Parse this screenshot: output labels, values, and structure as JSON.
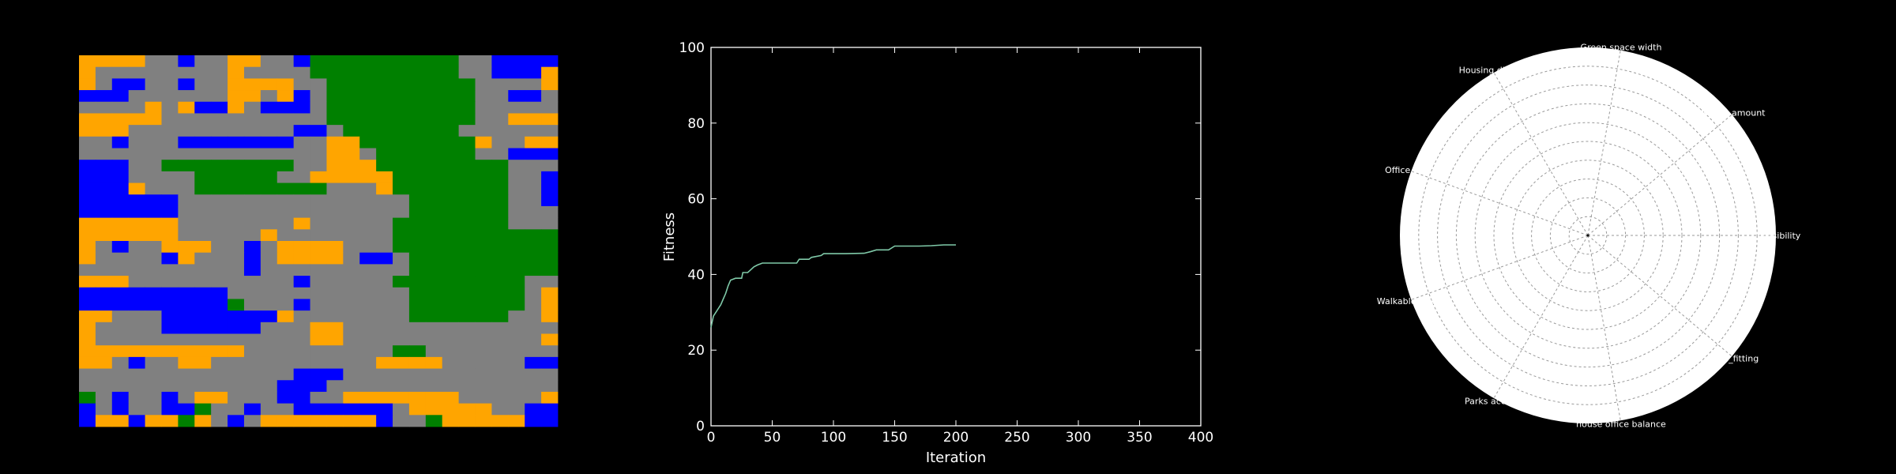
{
  "colors": {
    "background": "#000000",
    "housing": "#ffa500",
    "office": "#0000ff",
    "park": "#008000",
    "road": "#808080",
    "fitness_line": "#7fc9a8",
    "radar_face": "#ffffff",
    "radar_grid": "#999999"
  },
  "city_grid": {
    "legend": {
      "H": "housing",
      "O": "office",
      "P": "park",
      "R": "road"
    },
    "rows": [
      "HHHHRRORRHHRROPPPPPPPPPRROOOO",
      "HRRRRRRRRHRRRRPPPPPPPPPRROOOH",
      "HROORRORRHHHHRRPPPPPPPPPRRRRH",
      "OOORRRRRRHHRHORPPPPPPPPPRROOR",
      "RRRRHRHOOHROOORPPPPPPPPPRRRRR",
      "HHHHHRRRRRRRRRRPPPPPPPPPRRHHH",
      "HHHRRRRRRRRRROORPPPPPPPRRRRRR",
      "RRORRROOOOOOORRHHPPPPPPPHRRHH",
      "RRRRRRRRRRRRRRRHHRPPPPPPRROOO",
      "OOORRPPPPPPPPRRHHHPPPPPPPPRRR",
      "OOORRRRPPPPPRRHHHHHPPPPPPPRRO",
      "OOOHRRRPPPPPPPPRRRHPPPPPPPRRO",
      "OOOOOORRRRRRRRRRRRRRPPPPPPRRO",
      "OOOOOORRRRRRRRRRRRRRPPPPPPRRR",
      "HHHHHHRRRRRRRHRRRRRPPPPPPPRRR",
      "HHHHHHRRRRRHRRRRRRRPPPPPPPPPP",
      "HRORRHHHRRORHHHHRRRPPPPPPPPPP",
      "HRRRROHRRRORHHHHROORPPPPPPPPP",
      "RRRRRRRRRRORRRRRRRRRPPPPPPPPP",
      "HHHRRRRRRRRRRORRRRRPPPPPPPPRR",
      "OOOOOOOOORRRRRRRRRRRPPPPPPPRH",
      "OOOOOOOOOPRRRORRRRRRPPPPPPPRH",
      "HHRRROOOOOOOHRRRRRRRPPPPPPRRH",
      "HRRRROOOOOORRRHHRRRRRRRRRRRRR",
      "HRRRRRRRRRRRRRHHRRRRRRRRRRRRH",
      "HHHHHHHHHHRRRRRRRRRPPRRRRRRRR",
      "HHRORRHHRRRRRRRRRRHHHHRRRRROO",
      "RRRRRRRRRRRRROOORRRRRRRRRRRRR",
      "RRRRRRRRRRRROOORRRRRRRRRRRRRR",
      "PRORRORHHRRROORRHHHHHHHRRRRRH",
      "ORORROOPRRORROOOOOORHHHHHRROO",
      "OHHOHHPHRORHHHHHHHORRPHHHHHOO"
    ]
  },
  "chart_data": [
    {
      "type": "line",
      "title": "",
      "xlabel": "Iteration",
      "ylabel": "Fitness",
      "xlim": [
        0,
        400
      ],
      "ylim": [
        0,
        100
      ],
      "xticks": [
        0,
        50,
        100,
        150,
        200,
        250,
        300,
        350,
        400
      ],
      "yticks": [
        0,
        20,
        40,
        60,
        80,
        100
      ],
      "xtick_labels": [
        "0",
        "50",
        "100",
        "150",
        "200",
        "250",
        "300",
        "350",
        "400"
      ],
      "ytick_labels": [
        "0",
        "20",
        "40",
        "60",
        "80",
        "100"
      ],
      "grid": false,
      "series": [
        {
          "x": [
            0,
            1,
            2,
            4,
            6,
            8,
            10,
            12,
            14,
            16,
            20,
            25,
            26,
            30,
            35,
            38,
            42,
            50,
            70,
            72,
            80,
            82,
            90,
            92,
            100,
            110,
            125,
            130,
            135,
            145,
            150,
            160,
            170,
            180,
            190,
            200
          ],
          "y": [
            26,
            27.5,
            29,
            30,
            31,
            32,
            33.5,
            35,
            37,
            38.5,
            39,
            39,
            40.5,
            40.5,
            42,
            42.5,
            43,
            43,
            43,
            44,
            44,
            44.5,
            45,
            45.5,
            45.5,
            45.5,
            45.6,
            46,
            46.5,
            46.5,
            47.5,
            47.5,
            47.5,
            47.6,
            47.8,
            47.8
          ]
        }
      ]
    },
    {
      "type": "radar",
      "title": "",
      "axes": [
        "accessibility",
        "Green space amount",
        "Green space width",
        "Housing diversity",
        "Office diversity",
        "Walkable housing",
        "Parks access",
        "house office balance",
        "people_fitting"
      ],
      "axis_labels_shown": [
        "ccesibility",
        "space amount",
        "Green space width",
        "Housing diversi",
        "Office dive",
        "Walkable hous",
        "Parks access",
        "house office balance",
        "ople_fitting"
      ],
      "rings": 10,
      "grid": true,
      "series": []
    }
  ]
}
